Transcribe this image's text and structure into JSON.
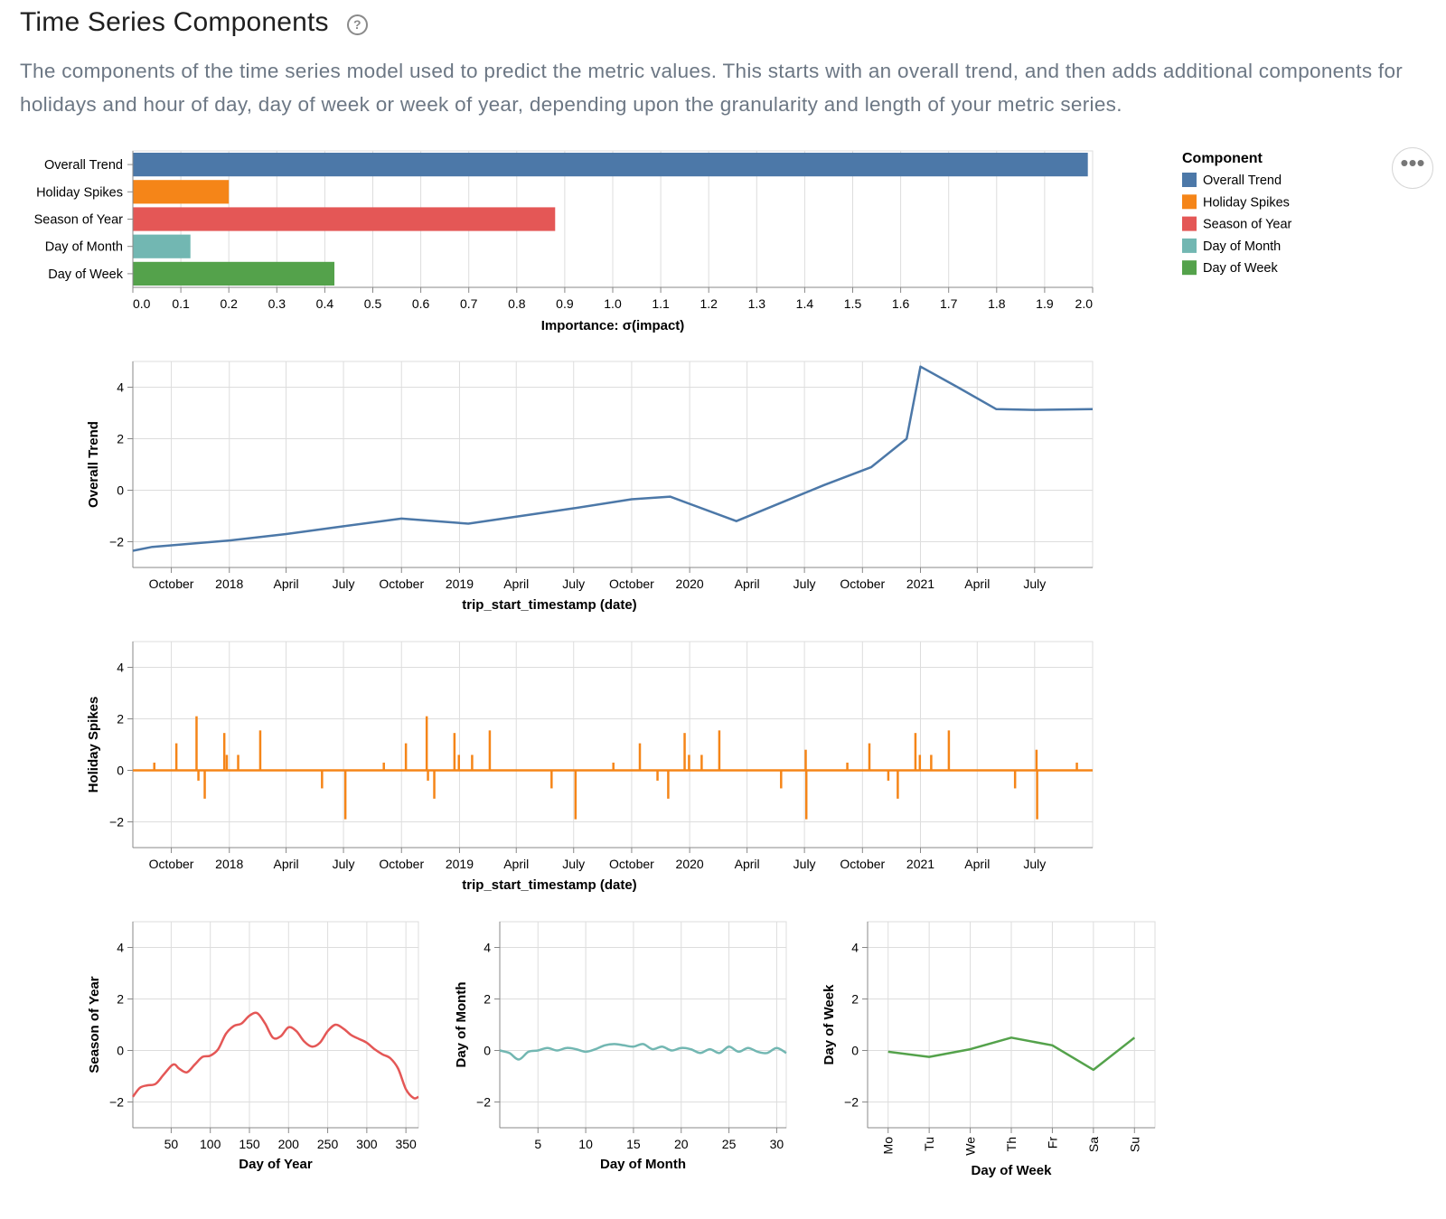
{
  "header": {
    "title": "Time Series Components",
    "help_icon": "question-circle-icon",
    "description": "The components of the time series model used to predict the metric values. This starts with an overall trend, and then adds additional components for holidays and hour of day, day of week or week of year, depending upon the granularity and length of your metric series."
  },
  "more_menu": {
    "icon": "more-horizontal-icon",
    "glyph": "•••"
  },
  "legend": {
    "title": "Component",
    "items": [
      {
        "label": "Overall Trend",
        "color": "#4c78a8"
      },
      {
        "label": "Holiday Spikes",
        "color": "#f58518"
      },
      {
        "label": "Season of Year",
        "color": "#e45756"
      },
      {
        "label": "Day of Month",
        "color": "#72b7b2"
      },
      {
        "label": "Day of Week",
        "color": "#54a24b"
      }
    ]
  },
  "chart_data": [
    {
      "type": "bar",
      "orientation": "horizontal",
      "categories": [
        "Overall Trend",
        "Holiday Spikes",
        "Season of Year",
        "Day of Month",
        "Day of Week"
      ],
      "values": [
        1.99,
        0.2,
        0.88,
        0.12,
        0.42
      ],
      "colors": [
        "#4c78a8",
        "#f58518",
        "#e45756",
        "#72b7b2",
        "#54a24b"
      ],
      "xlabel": "Importance: σ(impact)",
      "xlim": [
        0,
        2.0
      ],
      "xticks": [
        "0.0",
        "0.1",
        "0.2",
        "0.3",
        "0.4",
        "0.5",
        "0.6",
        "0.7",
        "0.8",
        "0.9",
        "1.0",
        "1.1",
        "1.2",
        "1.3",
        "1.4",
        "1.5",
        "1.6",
        "1.7",
        "1.8",
        "1.9",
        "2.0"
      ],
      "grid": true
    },
    {
      "type": "line",
      "name": "Overall Trend",
      "color": "#4c78a8",
      "x": [
        "2017-08-01",
        "2017-09-01",
        "2018-01-01",
        "2018-04-01",
        "2018-07-01",
        "2018-10-01",
        "2019-01-15",
        "2019-07-01",
        "2019-10-01",
        "2019-12-01",
        "2020-03-15",
        "2020-08-01",
        "2020-10-15",
        "2020-12-10",
        "2021-01-01",
        "2021-03-01",
        "2021-05-01",
        "2021-07-01",
        "2021-10-01"
      ],
      "y": [
        -2.35,
        -2.2,
        -1.95,
        -1.7,
        -1.4,
        -1.1,
        -1.3,
        -0.7,
        -0.35,
        -0.25,
        -1.2,
        0.2,
        0.9,
        2.0,
        4.8,
        4.0,
        3.15,
        3.12,
        3.15
      ],
      "ylabel": "Overall Trend",
      "xlabel": "trip_start_timestamp (date)",
      "ylim": [
        -3,
        5
      ],
      "yticks": [
        "−2",
        "0",
        "2",
        "4"
      ],
      "xticks": [
        "October",
        "2018",
        "April",
        "July",
        "October",
        "2019",
        "April",
        "July",
        "October",
        "2020",
        "April",
        "July",
        "October",
        "2021",
        "April",
        "July"
      ],
      "grid": true
    },
    {
      "type": "line",
      "name": "Holiday Spikes",
      "color": "#f58518",
      "spikes": [
        {
          "x": "2017-09-04",
          "y": 0.3
        },
        {
          "x": "2017-10-09",
          "y": 1.05
        },
        {
          "x": "2017-11-10",
          "y": 2.1
        },
        {
          "x": "2017-11-13",
          "y": -0.4
        },
        {
          "x": "2017-11-23",
          "y": -1.1
        },
        {
          "x": "2017-12-24",
          "y": 1.45
        },
        {
          "x": "2017-12-28",
          "y": 0.6
        },
        {
          "x": "2018-01-15",
          "y": 0.6
        },
        {
          "x": "2018-02-19",
          "y": 1.55
        },
        {
          "x": "2018-05-28",
          "y": -0.7
        },
        {
          "x": "2018-07-04",
          "y": -1.9
        },
        {
          "x": "2018-09-03",
          "y": 0.3
        },
        {
          "x": "2018-10-08",
          "y": 1.05
        },
        {
          "x": "2018-11-10",
          "y": 2.1
        },
        {
          "x": "2018-11-12",
          "y": -0.4
        },
        {
          "x": "2018-11-22",
          "y": -1.1
        },
        {
          "x": "2018-12-24",
          "y": 1.45
        },
        {
          "x": "2018-12-31",
          "y": 0.6
        },
        {
          "x": "2019-01-21",
          "y": 0.6
        },
        {
          "x": "2019-02-18",
          "y": 1.55
        },
        {
          "x": "2019-05-27",
          "y": -0.7
        },
        {
          "x": "2019-07-04",
          "y": -1.9
        },
        {
          "x": "2019-09-02",
          "y": 0.3
        },
        {
          "x": "2019-10-14",
          "y": 1.05
        },
        {
          "x": "2019-11-11",
          "y": -0.4
        },
        {
          "x": "2019-11-28",
          "y": -1.1
        },
        {
          "x": "2019-12-24",
          "y": 1.45
        },
        {
          "x": "2019-12-31",
          "y": 0.6
        },
        {
          "x": "2020-01-20",
          "y": 0.6
        },
        {
          "x": "2020-02-17",
          "y": 1.55
        },
        {
          "x": "2020-05-25",
          "y": -0.7
        },
        {
          "x": "2020-07-03",
          "y": 0.8
        },
        {
          "x": "2020-07-04",
          "y": -1.9
        },
        {
          "x": "2020-09-07",
          "y": 0.3
        },
        {
          "x": "2020-10-12",
          "y": 1.05
        },
        {
          "x": "2020-11-11",
          "y": -0.4
        },
        {
          "x": "2020-11-26",
          "y": -1.1
        },
        {
          "x": "2020-12-24",
          "y": 1.45
        },
        {
          "x": "2020-12-31",
          "y": 0.6
        },
        {
          "x": "2021-01-18",
          "y": 0.6
        },
        {
          "x": "2021-02-15",
          "y": 1.55
        },
        {
          "x": "2021-05-31",
          "y": -0.7
        },
        {
          "x": "2021-07-04",
          "y": 0.8
        },
        {
          "x": "2021-07-05",
          "y": -1.9
        },
        {
          "x": "2021-09-06",
          "y": 0.3
        }
      ],
      "ylabel": "Holiday Spikes",
      "xlabel": "trip_start_timestamp (date)",
      "ylim": [
        -3,
        5
      ],
      "yticks": [
        "−2",
        "0",
        "2",
        "4"
      ],
      "xticks": [
        "October",
        "2018",
        "April",
        "July",
        "October",
        "2019",
        "April",
        "July",
        "October",
        "2020",
        "April",
        "July",
        "October",
        "2021",
        "April",
        "July"
      ],
      "grid": true
    },
    {
      "type": "line",
      "name": "Season of Year",
      "color": "#e45756",
      "x": [
        1,
        10,
        20,
        30,
        40,
        50,
        55,
        60,
        70,
        80,
        90,
        100,
        110,
        120,
        130,
        140,
        150,
        160,
        170,
        180,
        190,
        200,
        210,
        220,
        230,
        240,
        250,
        260,
        270,
        280,
        290,
        300,
        310,
        320,
        330,
        340,
        350,
        360,
        366
      ],
      "y": [
        -1.8,
        -1.45,
        -1.35,
        -1.3,
        -0.95,
        -0.6,
        -0.55,
        -0.7,
        -0.85,
        -0.55,
        -0.25,
        -0.2,
        0.05,
        0.65,
        0.95,
        1.05,
        1.35,
        1.45,
        1.05,
        0.5,
        0.55,
        0.9,
        0.75,
        0.35,
        0.15,
        0.3,
        0.75,
        1.0,
        0.85,
        0.6,
        0.45,
        0.3,
        0.05,
        -0.15,
        -0.3,
        -0.7,
        -1.5,
        -1.85,
        -1.8
      ],
      "ylabel": "Season of Year",
      "xlabel": "Day of Year",
      "xlim": [
        1,
        366
      ],
      "ylim": [
        -3,
        5
      ],
      "yticks": [
        "−2",
        "0",
        "2",
        "4"
      ],
      "xticks": [
        50,
        100,
        150,
        200,
        250,
        300,
        350
      ],
      "grid": true
    },
    {
      "type": "line",
      "name": "Day of Month",
      "color": "#72b7b2",
      "x": [
        1,
        2,
        3,
        4,
        5,
        6,
        7,
        8,
        9,
        10,
        11,
        12,
        13,
        14,
        15,
        16,
        17,
        18,
        19,
        20,
        21,
        22,
        23,
        24,
        25,
        26,
        27,
        28,
        29,
        30,
        31
      ],
      "y": [
        0.0,
        -0.1,
        -0.35,
        -0.05,
        0.0,
        0.1,
        0.0,
        0.1,
        0.05,
        -0.05,
        0.05,
        0.2,
        0.25,
        0.2,
        0.15,
        0.25,
        0.05,
        0.15,
        0.0,
        0.1,
        0.05,
        -0.1,
        0.05,
        -0.1,
        0.15,
        -0.05,
        0.1,
        -0.05,
        -0.1,
        0.1,
        -0.1
      ],
      "ylabel": "Day of Month",
      "xlabel": "Day of Month",
      "xlim": [
        1,
        31
      ],
      "ylim": [
        -3,
        5
      ],
      "yticks": [
        "−2",
        "0",
        "2",
        "4"
      ],
      "xticks": [
        5,
        10,
        15,
        20,
        25,
        30
      ],
      "grid": true
    },
    {
      "type": "line",
      "name": "Day of Week",
      "color": "#54a24b",
      "categories": [
        "Mo",
        "Tu",
        "We",
        "Th",
        "Fr",
        "Sa",
        "Su"
      ],
      "values": [
        -0.05,
        -0.25,
        0.05,
        0.5,
        0.2,
        -0.75,
        0.5
      ],
      "ylabel": "Day of Week",
      "xlabel": "Day of Week",
      "ylim": [
        -3,
        5
      ],
      "yticks": [
        "−2",
        "0",
        "2",
        "4"
      ],
      "grid": true
    }
  ]
}
